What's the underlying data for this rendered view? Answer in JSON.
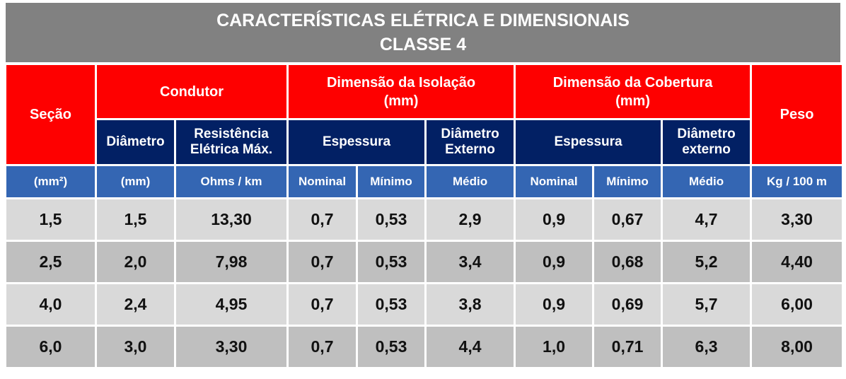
{
  "title": {
    "line1": "CARACTERÍSTICAS ELÉTRICA E DIMENSIONAIS",
    "line2": "CLASSE 4"
  },
  "headers": {
    "secao": "Seção",
    "condutor": "Condutor",
    "isolacao_l1": "Dimensão da Isolação",
    "isolacao_l2": "(mm)",
    "cobertura_l1": "Dimensão da Cobertura",
    "cobertura_l2": "(mm)",
    "peso": "Peso",
    "diametro": "Diâmetro",
    "resistencia_l1": "Resistência",
    "resistencia_l2": "Elétrica Máx.",
    "espessura_iso": "Espessura",
    "diam_ext_iso_l1": "Diâmetro",
    "diam_ext_iso_l2": "Externo",
    "espessura_cob": "Espessura",
    "diam_ext_cob_l1": "Diâmetro",
    "diam_ext_cob_l2": "externo"
  },
  "units": [
    "(mm²)",
    "(mm)",
    "Ohms / km",
    "Nominal",
    "Mínimo",
    "Médio",
    "Nominal",
    "Mínimo",
    "Médio",
    "Kg / 100 m"
  ],
  "rows": [
    [
      "1,5",
      "1,5",
      "13,30",
      "0,7",
      "0,53",
      "2,9",
      "0,9",
      "0,67",
      "4,7",
      "3,30"
    ],
    [
      "2,5",
      "2,0",
      "7,98",
      "0,7",
      "0,53",
      "3,4",
      "0,9",
      "0,68",
      "5,2",
      "4,40"
    ],
    [
      "4,0",
      "2,4",
      "4,95",
      "0,7",
      "0,53",
      "3,8",
      "0,9",
      "0,69",
      "5,7",
      "6,00"
    ],
    [
      "6,0",
      "3,0",
      "3,30",
      "0,7",
      "0,53",
      "4,4",
      "1,0",
      "0,71",
      "6,3",
      "8,00"
    ]
  ],
  "colors": {
    "title_bg": "#818181",
    "header_red": "#fe0000",
    "header_navy": "#022064",
    "header_blue": "#3466b3",
    "row_light": "#d9d9d9",
    "row_dark": "#bfbfbf"
  }
}
